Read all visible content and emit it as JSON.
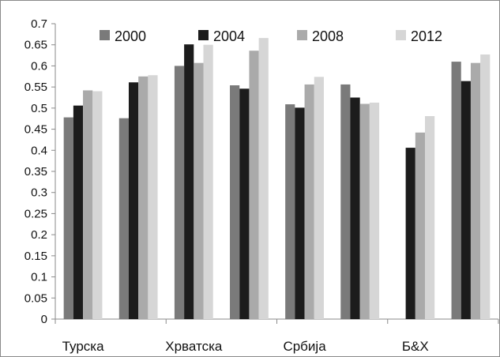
{
  "chart_data": {
    "type": "bar",
    "categories": [
      "Турска",
      "",
      "Хрватска",
      "",
      "Србија",
      "",
      "Б&Х",
      ""
    ],
    "series": [
      {
        "name": "2000",
        "color": "#7a7a7a",
        "values": [
          0.478,
          0.476,
          0.6,
          0.554,
          0.509,
          0.556,
          null,
          0.61
        ]
      },
      {
        "name": "2004",
        "color": "#1c1c1c",
        "values": [
          0.506,
          0.561,
          0.651,
          0.546,
          0.501,
          0.525,
          0.406,
          0.564
        ]
      },
      {
        "name": "2008",
        "color": "#aaaaaa",
        "values": [
          0.542,
          0.575,
          0.607,
          0.636,
          0.556,
          0.51,
          0.442,
          0.607
        ]
      },
      {
        "name": "2012",
        "color": "#d6d6d6",
        "values": [
          0.54,
          0.578,
          0.65,
          0.666,
          0.574,
          0.513,
          0.481,
          0.627
        ]
      }
    ],
    "ylim": [
      0,
      0.7
    ],
    "yticks": [
      "0",
      "0.05",
      "0.1",
      "0.15",
      "0.2",
      "0.25",
      "0.3",
      "0.35",
      "0.4",
      "0.45",
      "0.5",
      "0.55",
      "0.6",
      "0.65",
      "0.7"
    ],
    "xlabel": "",
    "ylabel": "",
    "grid": false,
    "legend_position": "top"
  }
}
